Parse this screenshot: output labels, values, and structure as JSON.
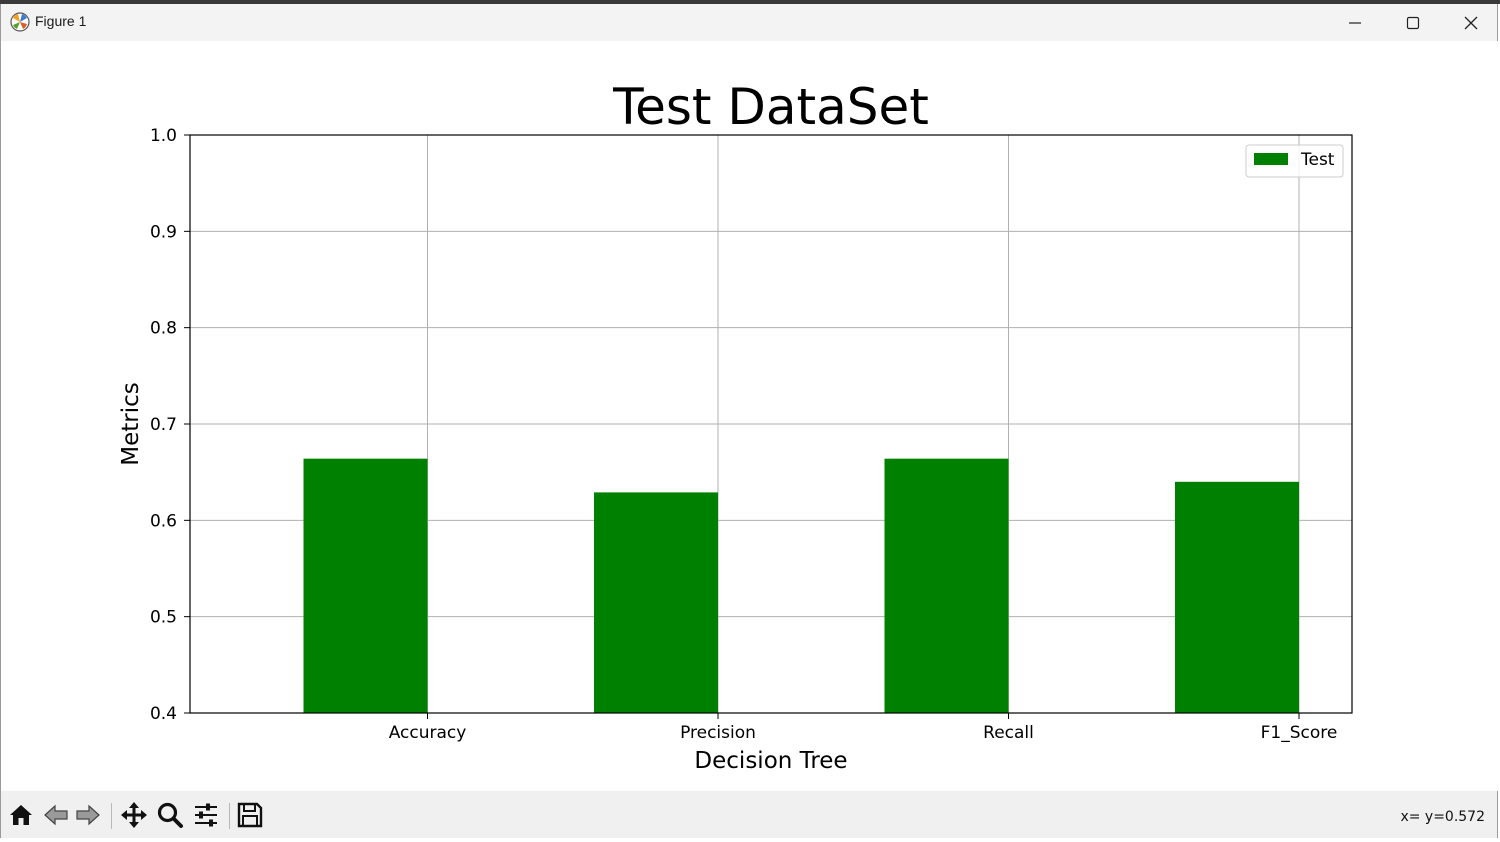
{
  "window": {
    "title": "Figure 1"
  },
  "toolbar": {
    "buttons": [
      "home-icon",
      "back-icon",
      "forward-icon",
      "pan-icon",
      "zoom-icon",
      "configure-subplots-icon",
      "save-icon"
    ],
    "coords": "x= y=0.572"
  },
  "colors": {
    "bar": "#008000",
    "grid": "#b0b0b0",
    "toolbar_bg": "#f0f0f0"
  },
  "chart_data": {
    "type": "bar",
    "title": "Test DataSet",
    "xlabel": "Decision Tree",
    "ylabel": "Metrics",
    "categories": [
      "Accuracy",
      "Precision",
      "Recall",
      "F1_Score"
    ],
    "series": [
      {
        "name": "Test",
        "values": [
          0.664,
          0.629,
          0.664,
          0.64
        ],
        "color": "#008000"
      }
    ],
    "ylim": [
      0.4,
      1.0
    ],
    "yticks": [
      "0.4",
      "0.5",
      "0.6",
      "0.7",
      "0.8",
      "0.9",
      "1.0"
    ],
    "grid": true,
    "legend": "top-right"
  }
}
